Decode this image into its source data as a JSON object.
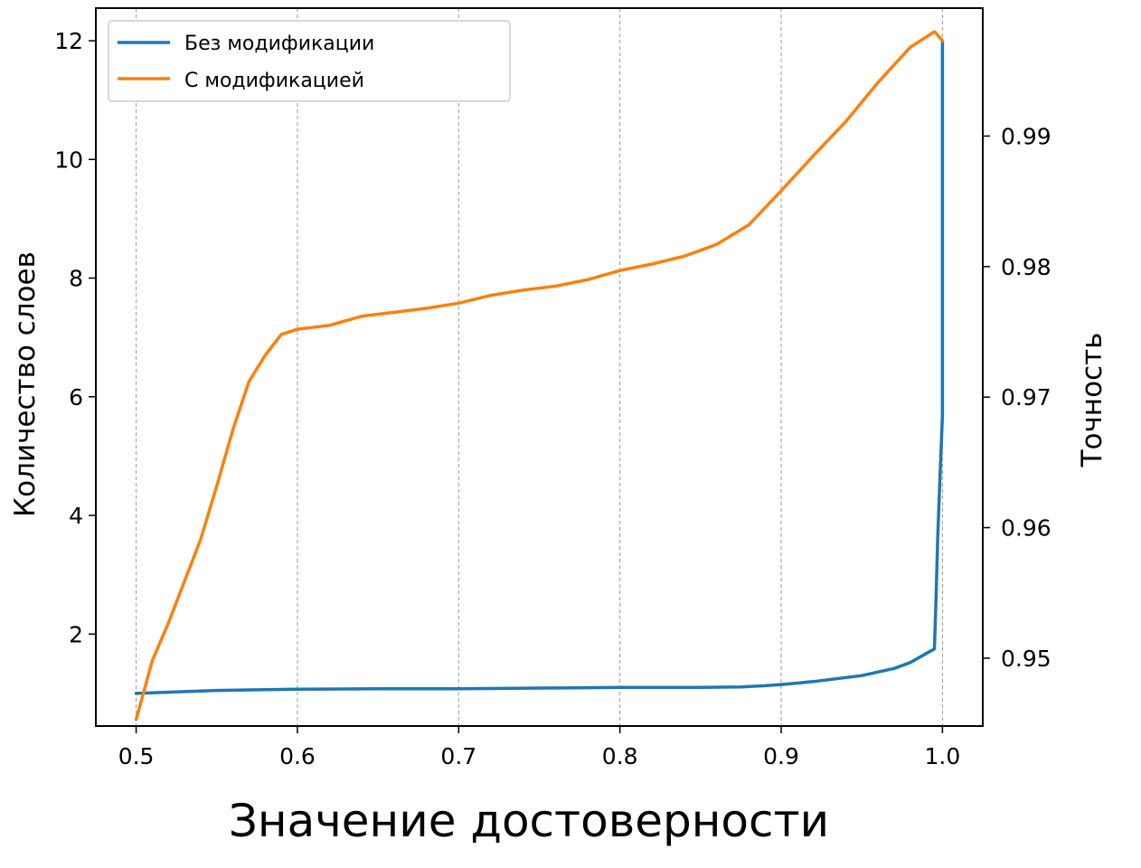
{
  "chart_data": {
    "type": "line",
    "xlabel": "Значение достоверности",
    "ylabel_left": "Количество слоев",
    "ylabel_right": "Точность",
    "xlim": [
      0.475,
      1.025
    ],
    "ylim_left": [
      0.45,
      12.55
    ],
    "ylim_right": [
      0.9448,
      0.9998
    ],
    "x_ticks": [
      0.5,
      0.6,
      0.7,
      0.8,
      0.9,
      1.0
    ],
    "x_tick_labels": [
      "0.5",
      "0.6",
      "0.7",
      "0.8",
      "0.9",
      "1.0"
    ],
    "y_left_ticks": [
      2,
      4,
      6,
      8,
      10,
      12
    ],
    "y_left_tick_labels": [
      "2",
      "4",
      "6",
      "8",
      "10",
      "12"
    ],
    "y_right_ticks": [
      0.95,
      0.96,
      0.97,
      0.98,
      0.99
    ],
    "y_right_tick_labels": [
      "0.95",
      "0.96",
      "0.97",
      "0.98",
      "0.99"
    ],
    "grid": "vertical-dashed",
    "legend_position": "top-left",
    "series": [
      {
        "name": "Без модификации",
        "axis": "left",
        "color": "#1f77b4",
        "x": [
          0.5,
          0.55,
          0.6,
          0.65,
          0.7,
          0.75,
          0.8,
          0.85,
          0.875,
          0.89,
          0.9,
          0.92,
          0.95,
          0.97,
          0.98,
          0.995,
          0.996,
          0.997,
          0.998,
          0.999,
          1.0,
          1.0
        ],
        "y": [
          1.0,
          1.05,
          1.07,
          1.08,
          1.08,
          1.09,
          1.1,
          1.1,
          1.11,
          1.13,
          1.15,
          1.2,
          1.3,
          1.42,
          1.52,
          1.75,
          2.6,
          3.6,
          4.3,
          5.0,
          5.7,
          12.0
        ]
      },
      {
        "name": "С модификацией",
        "axis": "right",
        "color": "#ff7f0e",
        "x": [
          0.5,
          0.51,
          0.52,
          0.53,
          0.54,
          0.55,
          0.56,
          0.57,
          0.58,
          0.59,
          0.6,
          0.62,
          0.64,
          0.66,
          0.68,
          0.7,
          0.72,
          0.74,
          0.76,
          0.78,
          0.8,
          0.82,
          0.84,
          0.86,
          0.88,
          0.9,
          0.92,
          0.94,
          0.96,
          0.98,
          0.99,
          0.995,
          0.998,
          1.0
        ],
        "y": [
          0.9453,
          0.9498,
          0.9527,
          0.9559,
          0.9591,
          0.9632,
          0.9675,
          0.9712,
          0.9732,
          0.9748,
          0.9752,
          0.9755,
          0.9762,
          0.9765,
          0.9768,
          0.9772,
          0.9778,
          0.9782,
          0.9785,
          0.979,
          0.9797,
          0.9802,
          0.9808,
          0.9817,
          0.9832,
          0.9858,
          0.9885,
          0.9911,
          0.9941,
          0.9968,
          0.9976,
          0.998,
          0.9976,
          0.9973
        ]
      }
    ]
  }
}
